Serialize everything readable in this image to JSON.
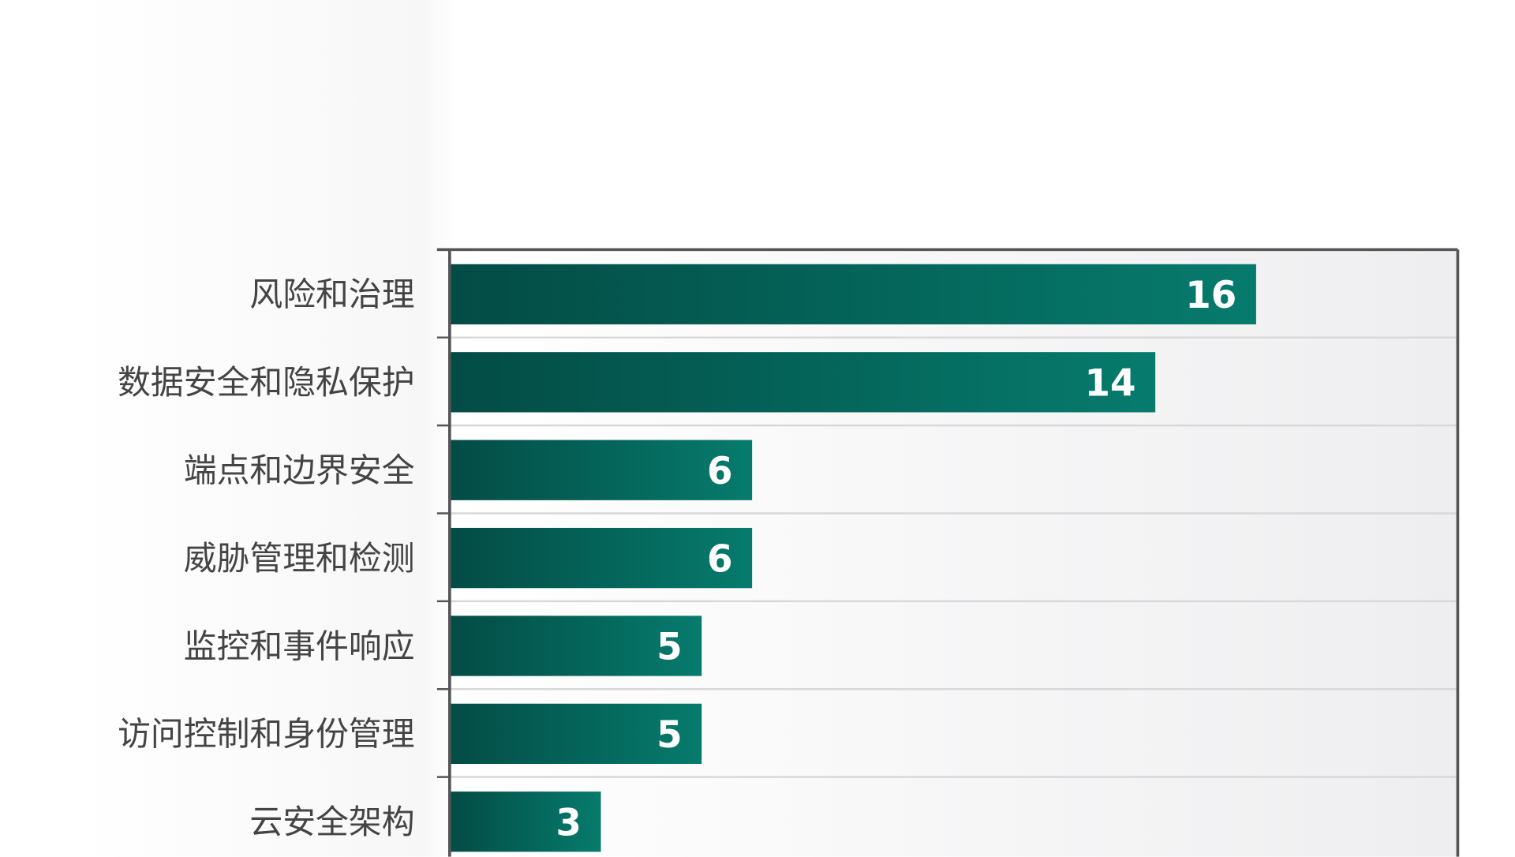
{
  "chart_data": {
    "type": "bar",
    "orientation": "horizontal",
    "categories": [
      "风险和治理",
      "数据安全和隐私保护",
      "端点和边界安全",
      "威胁管理和检测",
      "监控和事件响应",
      "访问控制和身份管理",
      "云安全架构"
    ],
    "values": [
      16,
      14,
      6,
      6,
      5,
      5,
      3
    ],
    "xlim": [
      0,
      20
    ],
    "grid": true,
    "data_labels": true,
    "colors": {
      "bar_start": "#034c45",
      "bar_end": "#067b6d",
      "label": "#444444",
      "value_label": "#ffffff",
      "axis": "#555555"
    }
  }
}
